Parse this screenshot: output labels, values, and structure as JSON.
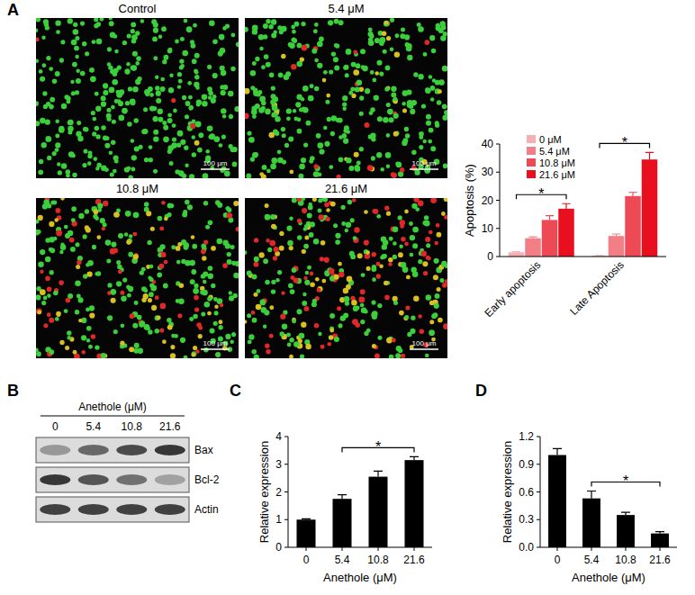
{
  "panel_labels": [
    "A",
    "B",
    "C",
    "D"
  ],
  "micrographs": {
    "titles": [
      "Control",
      "5.4 μM",
      "10.8 μM",
      "21.6 μM"
    ],
    "scale_bar": "100 μm"
  },
  "blot": {
    "title": "Anethole (μM)",
    "lanes": [
      "0",
      "5.4",
      "10.8",
      "21.6"
    ],
    "bands": [
      {
        "name": "Bax",
        "intensity": [
          0.35,
          0.6,
          0.75,
          0.85
        ]
      },
      {
        "name": "Bcl-2",
        "intensity": [
          0.85,
          0.7,
          0.55,
          0.3
        ]
      },
      {
        "name": "Actin",
        "intensity": [
          0.8,
          0.8,
          0.8,
          0.8
        ]
      }
    ]
  },
  "chart_data": [
    {
      "type": "bar",
      "y_label": "Apoptosis (%)",
      "categories": [
        "Early apoptosis",
        "Late Apoptosis"
      ],
      "series": [
        {
          "name": "0 μM",
          "color": "#f6b0b5",
          "values": [
            1.5,
            0.3
          ],
          "errors": [
            0.2,
            0.1
          ]
        },
        {
          "name": "5.4 μM",
          "color": "#f27e86",
          "values": [
            6.5,
            7.3
          ],
          "errors": [
            0.5,
            0.7
          ]
        },
        {
          "name": "10.8 μM",
          "color": "#ee4a55",
          "values": [
            13,
            21.5
          ],
          "errors": [
            1.5,
            1.3
          ]
        },
        {
          "name": "21.6 μM",
          "color": "#e8101e",
          "values": [
            17,
            34.5
          ],
          "errors": [
            1.8,
            2.5
          ]
        }
      ],
      "ylim": [
        0,
        40
      ],
      "yticks": [
        0,
        10,
        20,
        30,
        40
      ],
      "grid": false,
      "legend": "top-left",
      "annotations": [
        {
          "text": "*",
          "x": "Early apoptosis"
        },
        {
          "text": "*",
          "x": "Late Apoptosis"
        }
      ]
    },
    {
      "type": "bar",
      "y_label": "Relative expression",
      "x_label": "Anethole (μM)",
      "categories": [
        "0",
        "5.4",
        "10.8",
        "21.6"
      ],
      "values": [
        1,
        1.75,
        2.55,
        3.15
      ],
      "errors": [
        0.03,
        0.15,
        0.2,
        0.12
      ],
      "color": "#000000",
      "ylim": [
        0,
        4
      ],
      "yticks": [
        0,
        1,
        2,
        3,
        4
      ],
      "grid": false,
      "annotations": [
        {
          "text": "*",
          "from": "5.4",
          "to": "21.6"
        }
      ]
    },
    {
      "type": "bar",
      "y_label": "Relative expression",
      "x_label": "Anethole (μM)",
      "categories": [
        "0",
        "5.4",
        "10.8",
        "21.6"
      ],
      "values": [
        1,
        0.53,
        0.35,
        0.15
      ],
      "errors": [
        0.07,
        0.08,
        0.03,
        0.02
      ],
      "color": "#000000",
      "ylim": [
        0,
        1.2
      ],
      "yticks": [
        {
          "value": 0,
          "label": "0.0"
        },
        0.3,
        0.6,
        0.9,
        1.2
      ],
      "grid": false,
      "annotations": [
        {
          "text": "*",
          "from": "5.4",
          "to": "21.6"
        }
      ]
    }
  ]
}
